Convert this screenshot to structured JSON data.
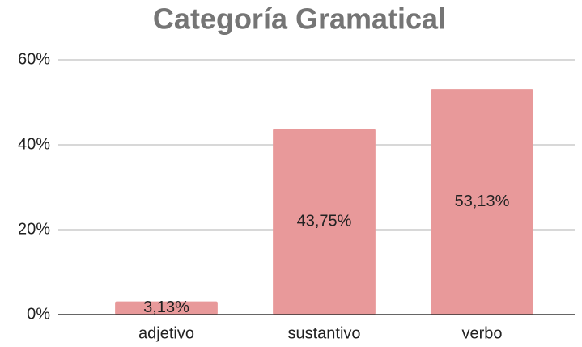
{
  "chart_data": {
    "type": "bar",
    "title": "Categoría Gramatical",
    "categories": [
      "adjetivo",
      "sustantivo",
      "verbo"
    ],
    "values": [
      3.13,
      43.75,
      53.13
    ],
    "value_labels": [
      "3,13%",
      "43,75%",
      "53,13%"
    ],
    "color": "#e8999a",
    "ylim": [
      0,
      60
    ],
    "yticks": [
      {
        "value": 0,
        "label": "0%"
      },
      {
        "value": 20,
        "label": "20%"
      },
      {
        "value": 40,
        "label": "40%"
      },
      {
        "value": 60,
        "label": "60%"
      }
    ],
    "grid": true
  }
}
